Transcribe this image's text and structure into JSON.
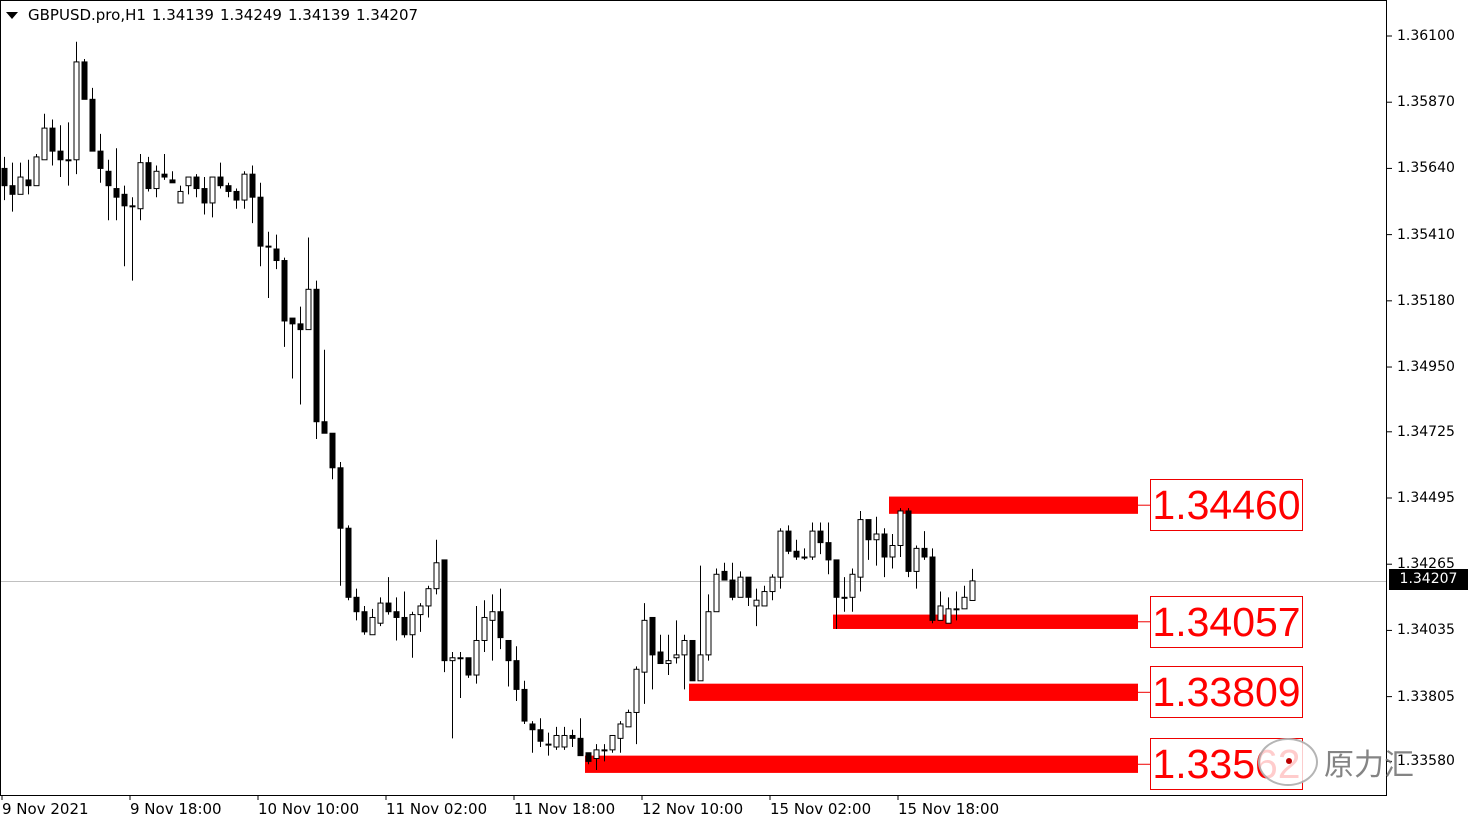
{
  "header": {
    "symbol": "GBPUSD.pro,H1",
    "open": "1.34139",
    "high": "1.34249",
    "low": "1.34139",
    "close": "1.34207"
  },
  "price_axis": [
    "1.36100",
    "1.35870",
    "1.35640",
    "1.35410",
    "1.35180",
    "1.34950",
    "1.34725",
    "1.34495",
    "1.34265",
    "1.34035",
    "1.33805",
    "1.33580"
  ],
  "current_price": "1.34207",
  "time_axis": [
    "9 Nov 2021",
    "9 Nov 18:00",
    "10 Nov 10:00",
    "11 Nov 02:00",
    "11 Nov 18:00",
    "12 Nov 10:00",
    "15 Nov 02:00",
    "15 Nov 18:00"
  ],
  "levels": [
    {
      "label": "1.34460",
      "upper": 1.345,
      "lower": 1.3444,
      "start_bar": 111
    },
    {
      "label": "1.34057",
      "upper": 1.3409,
      "lower": 1.3404,
      "start_bar": 104
    },
    {
      "label": "1.33809",
      "upper": 1.3385,
      "lower": 1.3379,
      "start_bar": 86
    },
    {
      "label": "1.33562",
      "upper": 1.336,
      "lower": 1.3354,
      "start_bar": 73
    }
  ],
  "colors": {
    "zone": "#ff0000",
    "bear": "#000000",
    "bull": "#ffffff",
    "current_line": "#c0c0c0"
  },
  "watermark": {
    "icon": "wechat-icon",
    "text": "原力汇"
  },
  "chart_data": {
    "type": "candlestick",
    "timeframe": "H1",
    "ylim": [
      1.335,
      1.362
    ],
    "ohlc": [
      [
        1.3564,
        1.3568,
        1.3553,
        1.3558
      ],
      [
        1.3558,
        1.3566,
        1.3549,
        1.3555
      ],
      [
        1.3555,
        1.3566,
        1.3555,
        1.3561
      ],
      [
        1.356,
        1.3567,
        1.3555,
        1.3558
      ],
      [
        1.3558,
        1.3569,
        1.3558,
        1.3568
      ],
      [
        1.3567,
        1.3583,
        1.3567,
        1.3578
      ],
      [
        1.3578,
        1.3581,
        1.3565,
        1.357
      ],
      [
        1.357,
        1.3579,
        1.3561,
        1.3567
      ],
      [
        1.3567,
        1.358,
        1.3558,
        1.3567
      ],
      [
        1.3567,
        1.3608,
        1.3562,
        1.3601
      ],
      [
        1.3601,
        1.3602,
        1.3588,
        1.3588
      ],
      [
        1.3588,
        1.3592,
        1.357,
        1.357
      ],
      [
        1.357,
        1.3576,
        1.3559,
        1.3564
      ],
      [
        1.3563,
        1.3567,
        1.3546,
        1.3558
      ],
      [
        1.3557,
        1.3571,
        1.3546,
        1.3554
      ],
      [
        1.3555,
        1.3558,
        1.353,
        1.3551
      ],
      [
        1.3551,
        1.3554,
        1.3525,
        1.3551
      ],
      [
        1.355,
        1.3569,
        1.3546,
        1.3566
      ],
      [
        1.3566,
        1.3568,
        1.3556,
        1.3557
      ],
      [
        1.3557,
        1.3565,
        1.3554,
        1.3563
      ],
      [
        1.3562,
        1.3569,
        1.356,
        1.3561
      ],
      [
        1.356,
        1.3563,
        1.3559,
        1.3559
      ],
      [
        1.3552,
        1.3558,
        1.3552,
        1.3556
      ],
      [
        1.3558,
        1.3561,
        1.3555,
        1.3561
      ],
      [
        1.3561,
        1.3562,
        1.3554,
        1.3557
      ],
      [
        1.3557,
        1.3561,
        1.3548,
        1.3552
      ],
      [
        1.3552,
        1.3561,
        1.3547,
        1.3561
      ],
      [
        1.3561,
        1.3566,
        1.3557,
        1.3558
      ],
      [
        1.3558,
        1.3559,
        1.3554,
        1.3556
      ],
      [
        1.3556,
        1.3557,
        1.355,
        1.3553
      ],
      [
        1.3553,
        1.3563,
        1.355,
        1.3562
      ],
      [
        1.3562,
        1.3565,
        1.3545,
        1.3554
      ],
      [
        1.3554,
        1.3559,
        1.353,
        1.3537
      ],
      [
        1.3537,
        1.3542,
        1.3519,
        1.3537
      ],
      [
        1.3536,
        1.3541,
        1.3529,
        1.3532
      ],
      [
        1.3532,
        1.3533,
        1.3502,
        1.3511
      ],
      [
        1.3512,
        1.3512,
        1.3491,
        1.351
      ],
      [
        1.351,
        1.3516,
        1.3482,
        1.3508
      ],
      [
        1.3508,
        1.354,
        1.3508,
        1.3522
      ],
      [
        1.3522,
        1.3525,
        1.347,
        1.3476
      ],
      [
        1.3476,
        1.3501,
        1.3472,
        1.3472
      ],
      [
        1.3472,
        1.3472,
        1.3456,
        1.346
      ],
      [
        1.346,
        1.3462,
        1.3419,
        1.3439
      ],
      [
        1.3439,
        1.344,
        1.3414,
        1.3415
      ],
      [
        1.3415,
        1.3418,
        1.3407,
        1.341
      ],
      [
        1.341,
        1.3412,
        1.3402,
        1.3403
      ],
      [
        1.3402,
        1.3411,
        1.3402,
        1.3408
      ],
      [
        1.3406,
        1.3415,
        1.3405,
        1.3413
      ],
      [
        1.3413,
        1.3422,
        1.3409,
        1.341
      ],
      [
        1.341,
        1.3415,
        1.34,
        1.3408
      ],
      [
        1.3408,
        1.3417,
        1.3401,
        1.3402
      ],
      [
        1.3402,
        1.341,
        1.3394,
        1.3409
      ],
      [
        1.3409,
        1.3413,
        1.3403,
        1.3412
      ],
      [
        1.3412,
        1.3419,
        1.3408,
        1.3418
      ],
      [
        1.3418,
        1.3435,
        1.3416,
        1.3427
      ],
      [
        1.3428,
        1.3428,
        1.3389,
        1.3393
      ],
      [
        1.3393,
        1.3396,
        1.3366,
        1.3394
      ],
      [
        1.3394,
        1.3396,
        1.338,
        1.3394
      ],
      [
        1.3394,
        1.3394,
        1.3387,
        1.3388
      ],
      [
        1.3388,
        1.3412,
        1.3385,
        1.34
      ],
      [
        1.34,
        1.3414,
        1.3396,
        1.3408
      ],
      [
        1.3407,
        1.3416,
        1.3393,
        1.341
      ],
      [
        1.341,
        1.3418,
        1.3397,
        1.3401
      ],
      [
        1.34,
        1.34,
        1.3384,
        1.3393
      ],
      [
        1.3393,
        1.3398,
        1.3379,
        1.3383
      ],
      [
        1.3383,
        1.3386,
        1.3371,
        1.3372
      ],
      [
        1.3371,
        1.3372,
        1.3361,
        1.3369
      ],
      [
        1.3369,
        1.3373,
        1.3363,
        1.3365
      ],
      [
        1.3364,
        1.3368,
        1.336,
        1.3364
      ],
      [
        1.3363,
        1.337,
        1.3362,
        1.3367
      ],
      [
        1.3363,
        1.337,
        1.3362,
        1.3367
      ],
      [
        1.3367,
        1.3369,
        1.3363,
        1.3366
      ],
      [
        1.3366,
        1.3373,
        1.336,
        1.336
      ],
      [
        1.3361,
        1.3361,
        1.3357,
        1.3358
      ],
      [
        1.3359,
        1.3364,
        1.3355,
        1.3362
      ],
      [
        1.3362,
        1.3364,
        1.3358,
        1.3362
      ],
      [
        1.3362,
        1.3367,
        1.3361,
        1.3367
      ],
      [
        1.3366,
        1.3372,
        1.3361,
        1.3371
      ],
      [
        1.337,
        1.3376,
        1.337,
        1.3375
      ],
      [
        1.3375,
        1.3391,
        1.3364,
        1.339
      ],
      [
        1.3389,
        1.3413,
        1.3378,
        1.3407
      ],
      [
        1.3408,
        1.3408,
        1.3383,
        1.3395
      ],
      [
        1.3396,
        1.3402,
        1.3392,
        1.3392
      ],
      [
        1.3392,
        1.3402,
        1.3388,
        1.3393
      ],
      [
        1.3394,
        1.3407,
        1.3392,
        1.3395
      ],
      [
        1.3395,
        1.3402,
        1.3383,
        1.34
      ],
      [
        1.34,
        1.34,
        1.3386,
        1.3386
      ],
      [
        1.3386,
        1.3426,
        1.3386,
        1.3395
      ],
      [
        1.3395,
        1.3416,
        1.3393,
        1.341
      ],
      [
        1.341,
        1.3425,
        1.341,
        1.3423
      ],
      [
        1.3424,
        1.3427,
        1.3421,
        1.3421
      ],
      [
        1.3421,
        1.3427,
        1.3414,
        1.3415
      ],
      [
        1.3415,
        1.3424,
        1.3415,
        1.3422
      ],
      [
        1.3422,
        1.3422,
        1.3412,
        1.3415
      ],
      [
        1.3412,
        1.3418,
        1.3405,
        1.3414
      ],
      [
        1.3412,
        1.3419,
        1.3412,
        1.3417
      ],
      [
        1.3417,
        1.3423,
        1.3414,
        1.3422
      ],
      [
        1.3422,
        1.3439,
        1.3418,
        1.3438
      ],
      [
        1.3438,
        1.344,
        1.343,
        1.3431
      ],
      [
        1.3431,
        1.3435,
        1.3428,
        1.3429
      ],
      [
        1.3429,
        1.3432,
        1.3428,
        1.3429
      ],
      [
        1.3429,
        1.3441,
        1.3428,
        1.3438
      ],
      [
        1.3438,
        1.3441,
        1.343,
        1.3434
      ],
      [
        1.3434,
        1.3441,
        1.3423,
        1.3428
      ],
      [
        1.3428,
        1.3428,
        1.3404,
        1.3415
      ],
      [
        1.3415,
        1.3422,
        1.341,
        1.3415
      ],
      [
        1.3415,
        1.3425,
        1.341,
        1.3423
      ],
      [
        1.3422,
        1.3445,
        1.3417,
        1.3442
      ],
      [
        1.3442,
        1.3442,
        1.3428,
        1.3435
      ],
      [
        1.3435,
        1.3443,
        1.3426,
        1.3437
      ],
      [
        1.3437,
        1.3439,
        1.3422,
        1.3429
      ],
      [
        1.3429,
        1.3437,
        1.3425,
        1.3433
      ],
      [
        1.3433,
        1.3446,
        1.3429,
        1.3445
      ],
      [
        1.3445,
        1.3446,
        1.3422,
        1.3424
      ],
      [
        1.3424,
        1.3433,
        1.3418,
        1.3432
      ],
      [
        1.3432,
        1.3438,
        1.3428,
        1.3429
      ],
      [
        1.3429,
        1.3432,
        1.3406,
        1.3407
      ],
      [
        1.3407,
        1.3417,
        1.3407,
        1.3412
      ],
      [
        1.3406,
        1.3415,
        1.3406,
        1.3411
      ],
      [
        1.3411,
        1.3417,
        1.3407,
        1.3411
      ],
      [
        1.3411,
        1.3419,
        1.3411,
        1.3415
      ],
      [
        1.34139,
        1.34249,
        1.34139,
        1.34207
      ]
    ]
  }
}
